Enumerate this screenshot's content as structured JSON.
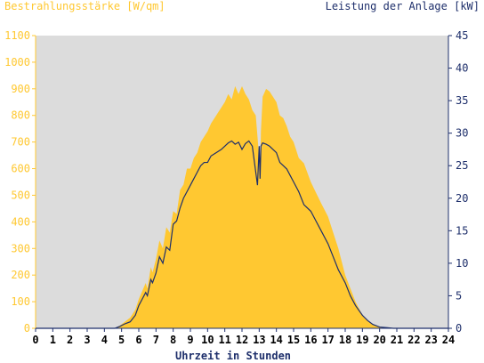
{
  "chart_data": {
    "type": "area",
    "left_axis_title": "Bestrahlungsstärke [W/qm]",
    "right_axis_title": "Leistung der Anlage [kW]",
    "xlabel": "Uhrzeit in Stunden",
    "xlim": [
      0,
      24
    ],
    "x_ticks": [
      "0",
      "1",
      "2",
      "3",
      "4",
      "5",
      "6",
      "7",
      "8",
      "9",
      "10",
      "11",
      "12",
      "13",
      "14",
      "15",
      "16",
      "17",
      "18",
      "19",
      "20",
      "21",
      "22",
      "23",
      "24"
    ],
    "ylim_left": [
      0,
      1100
    ],
    "y_ticks_left": [
      "0",
      "100",
      "200",
      "300",
      "400",
      "500",
      "600",
      "700",
      "800",
      "900",
      "1000",
      "1100"
    ],
    "ylim_right": [
      0,
      45
    ],
    "y_ticks_right": [
      "0",
      "5",
      "10",
      "15",
      "20",
      "25",
      "30",
      "35",
      "40",
      "45"
    ],
    "grid": false,
    "colors": {
      "plot_bg": "#dcdcdc",
      "irradiance": "#ffc831",
      "power": "#1e2f6b",
      "left_axis": "#ffc831",
      "right_axis": "#1e2f6b"
    },
    "series": [
      {
        "name": "Bestrahlungsstärke [W/qm]",
        "axis": "left",
        "type": "area",
        "x": [
          0,
          4.6,
          4.9,
          5.2,
          5.5,
          5.8,
          6.0,
          6.2,
          6.4,
          6.5,
          6.7,
          6.8,
          7.0,
          7.2,
          7.4,
          7.6,
          7.8,
          8.0,
          8.2,
          8.4,
          8.6,
          8.8,
          9.0,
          9.2,
          9.4,
          9.6,
          9.8,
          10.0,
          10.2,
          10.5,
          10.8,
          11.0,
          11.2,
          11.4,
          11.6,
          11.8,
          12.0,
          12.2,
          12.4,
          12.6,
          12.8,
          12.9,
          13.0,
          13.05,
          13.1,
          13.2,
          13.4,
          13.6,
          13.8,
          14.0,
          14.2,
          14.4,
          14.6,
          14.8,
          15.0,
          15.3,
          15.6,
          16.0,
          16.3,
          16.6,
          17.0,
          17.3,
          17.6,
          18.0,
          18.3,
          18.6,
          19.0,
          19.3,
          19.6,
          20.0,
          20.4,
          20.8,
          21.0,
          24
        ],
        "values": [
          0,
          0,
          10,
          25,
          40,
          70,
          110,
          140,
          170,
          150,
          230,
          210,
          260,
          330,
          300,
          380,
          360,
          440,
          430,
          520,
          540,
          600,
          600,
          640,
          660,
          700,
          720,
          740,
          770,
          800,
          830,
          850,
          880,
          860,
          910,
          880,
          910,
          880,
          860,
          820,
          800,
          720,
          640,
          560,
          740,
          870,
          900,
          890,
          870,
          850,
          800,
          790,
          760,
          720,
          700,
          640,
          620,
          550,
          510,
          470,
          420,
          360,
          300,
          200,
          150,
          100,
          50,
          30,
          15,
          5,
          2,
          0,
          0,
          0
        ]
      },
      {
        "name": "Leistung der Anlage [kW]",
        "axis": "right",
        "type": "line",
        "x": [
          0,
          4.6,
          4.9,
          5.2,
          5.5,
          5.8,
          6.0,
          6.2,
          6.4,
          6.5,
          6.7,
          6.8,
          7.0,
          7.2,
          7.4,
          7.6,
          7.8,
          8.0,
          8.2,
          8.4,
          8.6,
          8.8,
          9.0,
          9.2,
          9.4,
          9.6,
          9.8,
          10.0,
          10.2,
          10.5,
          10.8,
          11.0,
          11.2,
          11.4,
          11.6,
          11.8,
          12.0,
          12.2,
          12.4,
          12.6,
          12.8,
          12.9,
          13.0,
          13.05,
          13.1,
          13.2,
          13.4,
          13.6,
          13.8,
          14.0,
          14.2,
          14.4,
          14.6,
          14.8,
          15.0,
          15.3,
          15.6,
          16.0,
          16.3,
          16.6,
          17.0,
          17.3,
          17.6,
          18.0,
          18.3,
          18.6,
          19.0,
          19.3,
          19.6,
          20.0,
          20.4,
          20.8,
          21.0,
          24
        ],
        "values": [
          0,
          0,
          0.3,
          0.7,
          1.0,
          2.0,
          3.5,
          4.5,
          5.5,
          5.0,
          7.5,
          7.0,
          8.5,
          11.0,
          10.0,
          12.5,
          12.0,
          16.0,
          16.5,
          18.5,
          20.0,
          21.0,
          22.0,
          23.0,
          24.0,
          25.0,
          25.5,
          25.5,
          26.5,
          27.0,
          27.5,
          28.0,
          28.5,
          28.8,
          28.3,
          28.6,
          27.5,
          28.4,
          28.8,
          28.0,
          24.0,
          22.0,
          28.0,
          23.0,
          28.0,
          28.5,
          28.3,
          28.0,
          27.5,
          27.0,
          25.5,
          25.0,
          24.5,
          23.5,
          22.5,
          21.0,
          19.0,
          18.0,
          16.5,
          15.0,
          13.0,
          11.0,
          9.0,
          7.0,
          5.0,
          3.5,
          2.0,
          1.2,
          0.6,
          0.2,
          0.1,
          0,
          0,
          0
        ]
      }
    ]
  }
}
